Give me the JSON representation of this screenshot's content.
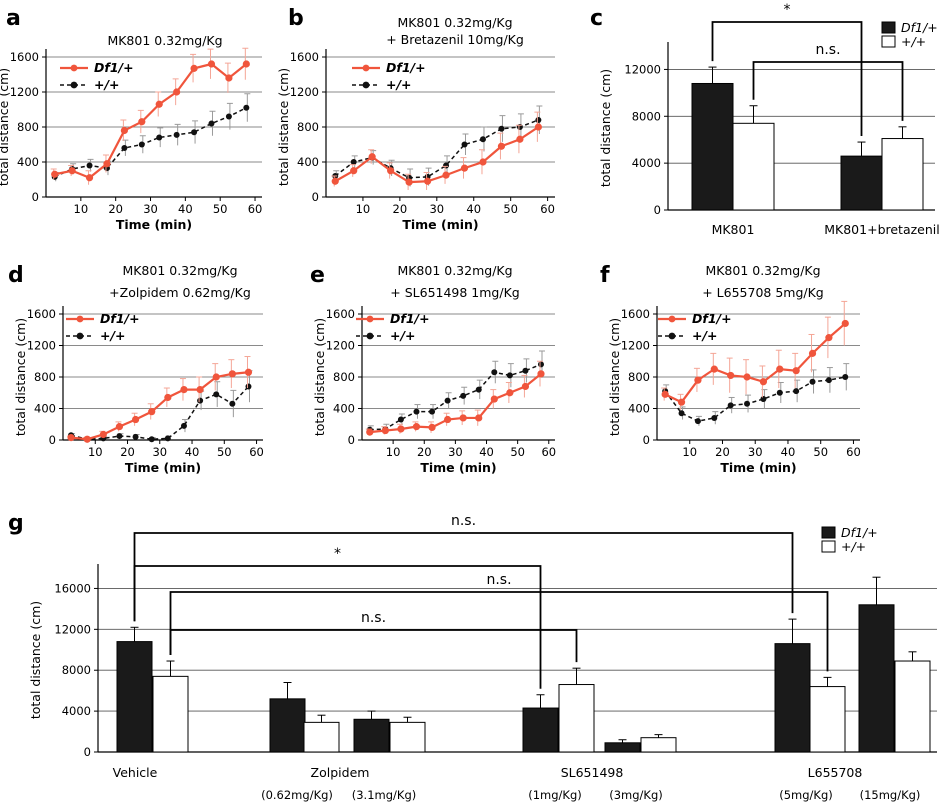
{
  "chart_data": [
    {
      "id": "a",
      "panel_label": "a",
      "type": "line",
      "title": [
        "MK801 0.32mg/Kg"
      ],
      "xlabel": "Time (min)",
      "ylabel": "total distance (cm)",
      "xlim": [
        0,
        62
      ],
      "ylim": [
        0,
        1600
      ],
      "xticks": [
        10,
        20,
        30,
        40,
        50,
        60
      ],
      "yticks": [
        0,
        400,
        800,
        1200,
        1600
      ],
      "grid": true,
      "legend_position": "top-left",
      "series": [
        {
          "name": "Df1/+",
          "color": "#f0553c",
          "style": "solid",
          "x": [
            2.5,
            7.5,
            12.5,
            17.5,
            22.5,
            27.5,
            32.5,
            37.5,
            42.5,
            47.5,
            52.5,
            57.5
          ],
          "y": [
            260,
            300,
            220,
            380,
            760,
            860,
            1060,
            1200,
            1470,
            1520,
            1360,
            1520
          ],
          "err": [
            60,
            60,
            80,
            100,
            120,
            130,
            140,
            150,
            160,
            170,
            170,
            180
          ]
        },
        {
          "name": "+/+",
          "color": "#111111",
          "style": "dashed",
          "x": [
            2.5,
            7.5,
            12.5,
            17.5,
            22.5,
            27.5,
            32.5,
            37.5,
            42.5,
            47.5,
            52.5,
            57.5
          ],
          "y": [
            230,
            320,
            360,
            330,
            560,
            600,
            680,
            710,
            740,
            840,
            920,
            1020
          ],
          "err": [
            50,
            60,
            70,
            80,
            90,
            100,
            110,
            120,
            130,
            140,
            150,
            160
          ]
        }
      ]
    },
    {
      "id": "b",
      "panel_label": "b",
      "type": "line",
      "title": [
        "MK801 0.32mg/Kg",
        "+ Bretazenil 10mg/Kg"
      ],
      "xlabel": "Time (min)",
      "ylabel": "total distance (cm)",
      "xlim": [
        0,
        62
      ],
      "ylim": [
        0,
        1600
      ],
      "xticks": [
        10,
        20,
        30,
        40,
        50,
        60
      ],
      "yticks": [
        0,
        400,
        800,
        1200,
        1600
      ],
      "grid": true,
      "legend_position": "top-left",
      "series": [
        {
          "name": "Df1/+",
          "color": "#f0553c",
          "style": "solid",
          "x": [
            2.5,
            7.5,
            12.5,
            17.5,
            22.5,
            27.5,
            32.5,
            37.5,
            42.5,
            47.5,
            52.5,
            57.5
          ],
          "y": [
            180,
            300,
            460,
            300,
            170,
            180,
            250,
            330,
            400,
            580,
            660,
            800
          ],
          "err": [
            60,
            70,
            80,
            90,
            90,
            100,
            100,
            120,
            140,
            150,
            160,
            170
          ]
        },
        {
          "name": "+/+",
          "color": "#111111",
          "style": "dashed",
          "x": [
            2.5,
            7.5,
            12.5,
            17.5,
            22.5,
            27.5,
            32.5,
            37.5,
            42.5,
            47.5,
            52.5,
            57.5
          ],
          "y": [
            240,
            400,
            450,
            330,
            220,
            230,
            360,
            600,
            660,
            780,
            800,
            880
          ],
          "err": [
            60,
            70,
            80,
            90,
            100,
            100,
            110,
            120,
            140,
            150,
            150,
            160
          ]
        }
      ]
    },
    {
      "id": "c",
      "panel_label": "c",
      "type": "bar",
      "title": [],
      "xlabel": "",
      "ylabel": "total distance (cm)",
      "ylim": [
        0,
        14000
      ],
      "yticks": [
        0,
        4000,
        8000,
        12000
      ],
      "grid": true,
      "legend_position": "top-right",
      "categories": [
        "MK801",
        "MK801+bretazenil"
      ],
      "series": [
        {
          "name": "Df1/+",
          "fill": "#1a1a1a",
          "values": [
            10800,
            4600
          ],
          "err": [
            1400,
            1200
          ]
        },
        {
          "name": "+/+",
          "fill": "#ffffff",
          "values": [
            7400,
            6100
          ],
          "err": [
            1500,
            1000
          ]
        }
      ],
      "brackets": [
        {
          "label": "*",
          "from": [
            0,
            0
          ],
          "to": [
            1,
            0
          ]
        },
        {
          "label": "n.s.",
          "from": [
            0,
            1
          ],
          "to": [
            1,
            1
          ]
        }
      ]
    },
    {
      "id": "d",
      "panel_label": "d",
      "type": "line",
      "title": [
        "MK801 0.32mg/Kg",
        "+Zolpidem 0.62mg/Kg"
      ],
      "xlabel": "Time (min)",
      "ylabel": "total distance (cm)",
      "xlim": [
        0,
        62
      ],
      "ylim": [
        0,
        1600
      ],
      "xticks": [
        10,
        20,
        30,
        40,
        50,
        60
      ],
      "yticks": [
        0,
        400,
        800,
        1200,
        1600
      ],
      "grid": true,
      "legend_position": "top-left",
      "series": [
        {
          "name": "Df1/+",
          "color": "#f0553c",
          "style": "solid",
          "x": [
            2.5,
            7.5,
            12.5,
            17.5,
            22.5,
            27.5,
            32.5,
            37.5,
            42.5,
            47.5,
            52.5,
            57.5
          ],
          "y": [
            30,
            10,
            70,
            170,
            260,
            360,
            540,
            640,
            640,
            800,
            840,
            860
          ],
          "err": [
            20,
            20,
            40,
            60,
            80,
            100,
            120,
            140,
            160,
            170,
            180,
            200
          ]
        },
        {
          "name": "+/+",
          "color": "#111111",
          "style": "dashed",
          "x": [
            2.5,
            7.5,
            12.5,
            17.5,
            22.5,
            27.5,
            32.5,
            37.5,
            42.5,
            47.5,
            52.5,
            57.5
          ],
          "y": [
            60,
            10,
            20,
            50,
            40,
            10,
            20,
            180,
            500,
            580,
            460,
            680
          ],
          "err": [
            20,
            20,
            20,
            30,
            30,
            20,
            30,
            80,
            120,
            160,
            170,
            200
          ]
        }
      ]
    },
    {
      "id": "e",
      "panel_label": "e",
      "type": "line",
      "title": [
        "MK801 0.32mg/Kg",
        "+ SL651498 1mg/Kg"
      ],
      "xlabel": "Time (min)",
      "ylabel": "total distance (cm)",
      "xlim": [
        0,
        62
      ],
      "ylim": [
        0,
        1600
      ],
      "xticks": [
        10,
        20,
        30,
        40,
        50,
        60
      ],
      "yticks": [
        0,
        400,
        800,
        1200,
        1600
      ],
      "grid": true,
      "legend_position": "top-left",
      "series": [
        {
          "name": "Df1/+",
          "color": "#f0553c",
          "style": "solid",
          "x": [
            2.5,
            7.5,
            12.5,
            17.5,
            22.5,
            27.5,
            32.5,
            37.5,
            42.5,
            47.5,
            52.5,
            57.5
          ],
          "y": [
            100,
            120,
            140,
            170,
            160,
            260,
            280,
            280,
            520,
            600,
            680,
            840
          ],
          "err": [
            40,
            50,
            60,
            60,
            70,
            80,
            90,
            100,
            120,
            130,
            140,
            160
          ]
        },
        {
          "name": "+/+",
          "color": "#111111",
          "style": "dashed",
          "x": [
            2.5,
            7.5,
            12.5,
            17.5,
            22.5,
            27.5,
            32.5,
            37.5,
            42.5,
            47.5,
            52.5,
            57.5
          ],
          "y": [
            130,
            140,
            260,
            360,
            360,
            500,
            560,
            640,
            860,
            820,
            880,
            960
          ],
          "err": [
            50,
            60,
            70,
            90,
            90,
            100,
            110,
            120,
            140,
            150,
            150,
            170
          ]
        }
      ]
    },
    {
      "id": "f",
      "panel_label": "f",
      "type": "line",
      "title": [
        "MK801 0.32mg/Kg",
        "+ L655708 5mg/Kg"
      ],
      "xlabel": "Time (min)",
      "ylabel": "total distance (cm)",
      "xlim": [
        0,
        62
      ],
      "ylim": [
        0,
        1600
      ],
      "xticks": [
        10,
        20,
        30,
        40,
        50,
        60
      ],
      "yticks": [
        0,
        400,
        800,
        1200,
        1600
      ],
      "grid": true,
      "legend_position": "top-left",
      "series": [
        {
          "name": "Df1/+",
          "color": "#f0553c",
          "style": "solid",
          "x": [
            2.5,
            7.5,
            12.5,
            17.5,
            22.5,
            27.5,
            32.5,
            37.5,
            42.5,
            47.5,
            52.5,
            57.5
          ],
          "y": [
            580,
            480,
            760,
            900,
            820,
            800,
            740,
            900,
            880,
            1100,
            1300,
            1480
          ],
          "err": [
            80,
            100,
            150,
            200,
            220,
            220,
            200,
            240,
            220,
            240,
            260,
            280
          ]
        },
        {
          "name": "+/+",
          "color": "#111111",
          "style": "dashed",
          "x": [
            2.5,
            7.5,
            12.5,
            17.5,
            22.5,
            27.5,
            32.5,
            37.5,
            42.5,
            47.5,
            52.5,
            57.5
          ],
          "y": [
            620,
            340,
            240,
            280,
            440,
            460,
            520,
            600,
            620,
            740,
            760,
            800
          ],
          "err": [
            80,
            80,
            60,
            80,
            100,
            110,
            120,
            130,
            140,
            150,
            160,
            170
          ]
        }
      ]
    },
    {
      "id": "g",
      "panel_label": "g",
      "type": "bar",
      "title": [],
      "xlabel": "",
      "ylabel": "total distance (cm)",
      "ylim": [
        0,
        18000
      ],
      "yticks": [
        0,
        4000,
        8000,
        12000,
        16000
      ],
      "grid": true,
      "legend_position": "top-right",
      "group_labels": [
        "Vehicle",
        "Zolpidem",
        "SL651498",
        "L655708"
      ],
      "dose_labels": [
        "(0.62mg/Kg)",
        "(3.1mg/Kg)",
        "(1mg/Kg)",
        "(3mg/Kg)",
        "(5mg/Kg)",
        "(15mg/Kg)"
      ],
      "categories": [
        "Vehicle",
        "Zolpidem 0.62mg/Kg",
        "Zolpidem 3.1mg/Kg",
        "SL651498 1mg/Kg",
        "SL651498 3mg/Kg",
        "L655708 5mg/Kg",
        "L655708 15mg/Kg"
      ],
      "series": [
        {
          "name": "Df1/+",
          "fill": "#1a1a1a",
          "values": [
            10800,
            5200,
            3200,
            4300,
            900,
            10600,
            14400
          ],
          "err": [
            1400,
            1600,
            800,
            1300,
            300,
            2400,
            2700
          ]
        },
        {
          "name": "+/+",
          "fill": "#ffffff",
          "values": [
            7400,
            2900,
            2900,
            6600,
            1400,
            6400,
            8900
          ],
          "err": [
            1500,
            700,
            500,
            1600,
            300,
            900,
            900
          ]
        }
      ],
      "brackets": [
        {
          "label": "n.s.",
          "from": [
            0,
            0
          ],
          "to": [
            5,
            0
          ]
        },
        {
          "label": "*",
          "from": [
            0,
            0
          ],
          "to": [
            3,
            0
          ]
        },
        {
          "label": "n.s.",
          "from": [
            0,
            1
          ],
          "to": [
            5,
            1
          ]
        },
        {
          "label": "n.s.",
          "from": [
            0,
            1
          ],
          "to": [
            3,
            1
          ]
        }
      ]
    }
  ]
}
